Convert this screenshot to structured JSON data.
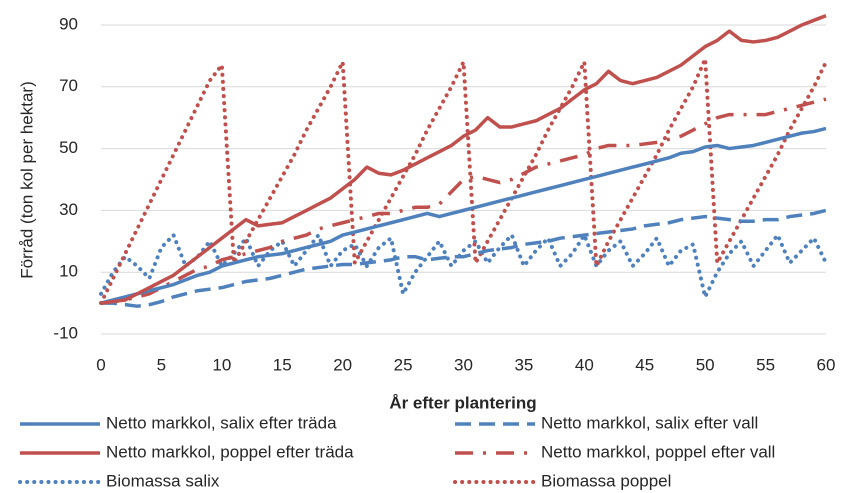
{
  "chart_data": {
    "type": "line",
    "ylabel": "Förråd (ton  kol per hektar)",
    "xlabel": "År efter plantering",
    "x": [
      0,
      1,
      2,
      3,
      4,
      5,
      6,
      7,
      8,
      9,
      10,
      11,
      12,
      13,
      14,
      15,
      16,
      17,
      18,
      19,
      20,
      21,
      22,
      23,
      24,
      25,
      26,
      27,
      28,
      29,
      30,
      31,
      32,
      33,
      34,
      35,
      36,
      37,
      38,
      39,
      40,
      41,
      42,
      43,
      44,
      45,
      46,
      47,
      48,
      49,
      50,
      51,
      52,
      53,
      54,
      55,
      56,
      57,
      58,
      59,
      60
    ],
    "xlim": [
      0,
      60
    ],
    "xticks": [
      0,
      5,
      10,
      15,
      20,
      25,
      30,
      35,
      40,
      45,
      50,
      55,
      60
    ],
    "ylim": [
      -10,
      95
    ],
    "yticks": [
      -10,
      10,
      30,
      50,
      70,
      90
    ],
    "grid": true,
    "series": [
      {
        "name": "Netto markkol, salix efter träda",
        "color": "#4f81bd",
        "dash": "solid",
        "values": [
          0,
          1,
          2,
          3,
          4,
          5,
          6,
          7.5,
          9,
          10,
          12,
          13,
          14,
          15,
          15.5,
          16,
          17,
          18,
          19,
          20,
          22,
          23,
          24,
          25,
          26,
          27,
          28,
          29,
          28,
          29,
          30,
          31,
          32,
          33,
          34,
          35,
          36,
          37,
          38,
          39,
          40,
          41,
          42,
          43,
          44,
          45,
          46,
          47,
          48.5,
          49,
          50.5,
          51,
          50,
          50.5,
          51,
          52,
          53,
          54,
          55,
          55.5,
          56.5
        ]
      },
      {
        "name": "Netto markkol, salix efter vall",
        "color": "#4f81bd",
        "dash": "dash",
        "values": [
          0,
          0,
          -0.5,
          -1,
          -0.5,
          0.5,
          2,
          3,
          4,
          4.5,
          5,
          6,
          7,
          7.5,
          8,
          9,
          10,
          11,
          11.5,
          12,
          12.5,
          12.5,
          13,
          13.5,
          14,
          15,
          15,
          14,
          14.5,
          15,
          15,
          16,
          17,
          17.5,
          18,
          19,
          19.5,
          20,
          21,
          21.5,
          22,
          22.5,
          23,
          23.5,
          24,
          25,
          25.5,
          26,
          27,
          27.5,
          28,
          27.5,
          27,
          26.5,
          26.5,
          27,
          27,
          28,
          28.5,
          29,
          30
        ]
      },
      {
        "name": "Netto markkol, poppel efter träda",
        "color": "#c0504d",
        "dash": "solid",
        "values": [
          0,
          0.5,
          1,
          3,
          5,
          7,
          9,
          12,
          15,
          18,
          21,
          24,
          27,
          25,
          25.5,
          26,
          28,
          30,
          32,
          34,
          37,
          40,
          44,
          42,
          41.5,
          43,
          45,
          47,
          49,
          51,
          54,
          56,
          60,
          57,
          57,
          58,
          59,
          61,
          63,
          66,
          69,
          71,
          75,
          72,
          71,
          72,
          73,
          75,
          77,
          80,
          83,
          85,
          88,
          85,
          84.5,
          85,
          86,
          88,
          90,
          91.5,
          93
        ]
      },
      {
        "name": "Netto markkol, poppel efter vall",
        "color": "#c0504d",
        "dash": "dashdot",
        "values": [
          0,
          0.5,
          1,
          2,
          3,
          5,
          7,
          9,
          11,
          12,
          14,
          15,
          16,
          17,
          18,
          20,
          21,
          22,
          24,
          25,
          26,
          27,
          28,
          29,
          29,
          30,
          31,
          31,
          32,
          36,
          40,
          41,
          40,
          39,
          40,
          42,
          44,
          45,
          46,
          47,
          48,
          50,
          51,
          51,
          51,
          51.5,
          52,
          53,
          54,
          56,
          58,
          60,
          61,
          61,
          61,
          61,
          62,
          63,
          64,
          65,
          66
        ]
      },
      {
        "name": "Biomassa salix",
        "color": "#4f81bd",
        "dash": "dot",
        "values": [
          3,
          10,
          15,
          12,
          8,
          18,
          22,
          12,
          15,
          20,
          12,
          16,
          21,
          12,
          17,
          20,
          12,
          17,
          22,
          12,
          17,
          19,
          12,
          18,
          21,
          3,
          10,
          15,
          20,
          12,
          17,
          20,
          13,
          18,
          22,
          12,
          17,
          21,
          12,
          16,
          22,
          12,
          17,
          20,
          12,
          16,
          21,
          12,
          17,
          19,
          2,
          10,
          16,
          20,
          12,
          17,
          22,
          13,
          17,
          21,
          13
        ]
      },
      {
        "name": "Biomassa poppel",
        "color": "#c0504d",
        "dash": "dot",
        "values": [
          0,
          8,
          16,
          24,
          32,
          40,
          48,
          56,
          64,
          72,
          77,
          13,
          20,
          27,
          34,
          41,
          48,
          56,
          63,
          70,
          78,
          13,
          20,
          27,
          34,
          41,
          48,
          56,
          63,
          70,
          78,
          13,
          20,
          27,
          34,
          41,
          48,
          56,
          63,
          70,
          78,
          12,
          20,
          27,
          34,
          41,
          48,
          56,
          63,
          70,
          79,
          13,
          20,
          27,
          34,
          41,
          48,
          56,
          63,
          70,
          78
        ]
      }
    ]
  }
}
